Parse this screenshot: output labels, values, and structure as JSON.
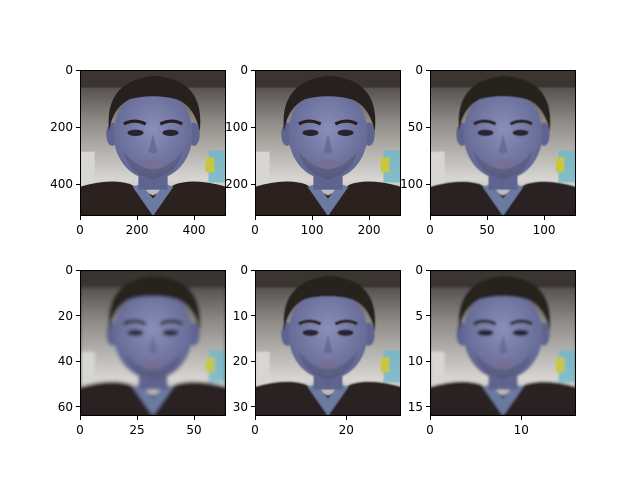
{
  "figure": {
    "background": "#ffffff",
    "subplots": [
      {
        "id": "p1",
        "resolution": 512,
        "xticks": [
          "0",
          "200",
          "400"
        ],
        "yticks": [
          "0",
          "200",
          "400"
        ],
        "xtick_frac": [
          0,
          0.390625,
          0.78125
        ],
        "ytick_frac": [
          0,
          0.390625,
          0.78125
        ],
        "blur": 0,
        "pixelate": 0
      },
      {
        "id": "p2",
        "resolution": 256,
        "xticks": [
          "0",
          "100",
          "200"
        ],
        "yticks": [
          "0",
          "100",
          "200"
        ],
        "xtick_frac": [
          0,
          0.390625,
          0.78125
        ],
        "ytick_frac": [
          0,
          0.390625,
          0.78125
        ],
        "blur": 0,
        "pixelate": 0
      },
      {
        "id": "p3",
        "resolution": 128,
        "xticks": [
          "0",
          "50",
          "100"
        ],
        "yticks": [
          "0",
          "50",
          "100"
        ],
        "xtick_frac": [
          0,
          0.390625,
          0.78125
        ],
        "ytick_frac": [
          0,
          0.390625,
          0.78125
        ],
        "blur": 0.3,
        "pixelate": 0
      },
      {
        "id": "p4",
        "resolution": 64,
        "xticks": [
          "0",
          "25",
          "50"
        ],
        "yticks": [
          "0",
          "20",
          "40",
          "60"
        ],
        "xtick_frac": [
          0,
          0.390625,
          0.78125
        ],
        "ytick_frac": [
          0,
          0.3125,
          0.625,
          0.9375
        ],
        "blur": 1.2,
        "pixelate": 0
      },
      {
        "id": "p5",
        "resolution": 32,
        "xticks": [
          "0",
          "20"
        ],
        "yticks": [
          "0",
          "10",
          "20",
          "30"
        ],
        "xtick_frac": [
          0,
          0.625
        ],
        "ytick_frac": [
          0,
          0.3125,
          0.625,
          0.9375
        ],
        "blur": 2.5,
        "pixelate": 32
      },
      {
        "id": "p6",
        "resolution": 16,
        "xticks": [
          "0",
          "10"
        ],
        "yticks": [
          "0",
          "5",
          "10",
          "15"
        ],
        "xtick_frac": [
          0,
          0.625
        ],
        "ytick_frac": [
          0,
          0.3125,
          0.625,
          0.9375
        ],
        "blur": 4,
        "pixelate": 16
      }
    ],
    "image_colors": {
      "skin": "#8a8fb8",
      "skin_shadow": "#5e6390",
      "hair": "#26211f",
      "jacket": "#2b2220",
      "shirt": "#6a7aa0",
      "background_light": "#d8d6d2",
      "background_mid": "#8e8a86",
      "ceiling": "#3a3432",
      "lips": "#7a6e94",
      "eyes": "#2a2230",
      "accent_yellow": "#c9c640",
      "accent_cyan": "#6fb6c8"
    }
  }
}
